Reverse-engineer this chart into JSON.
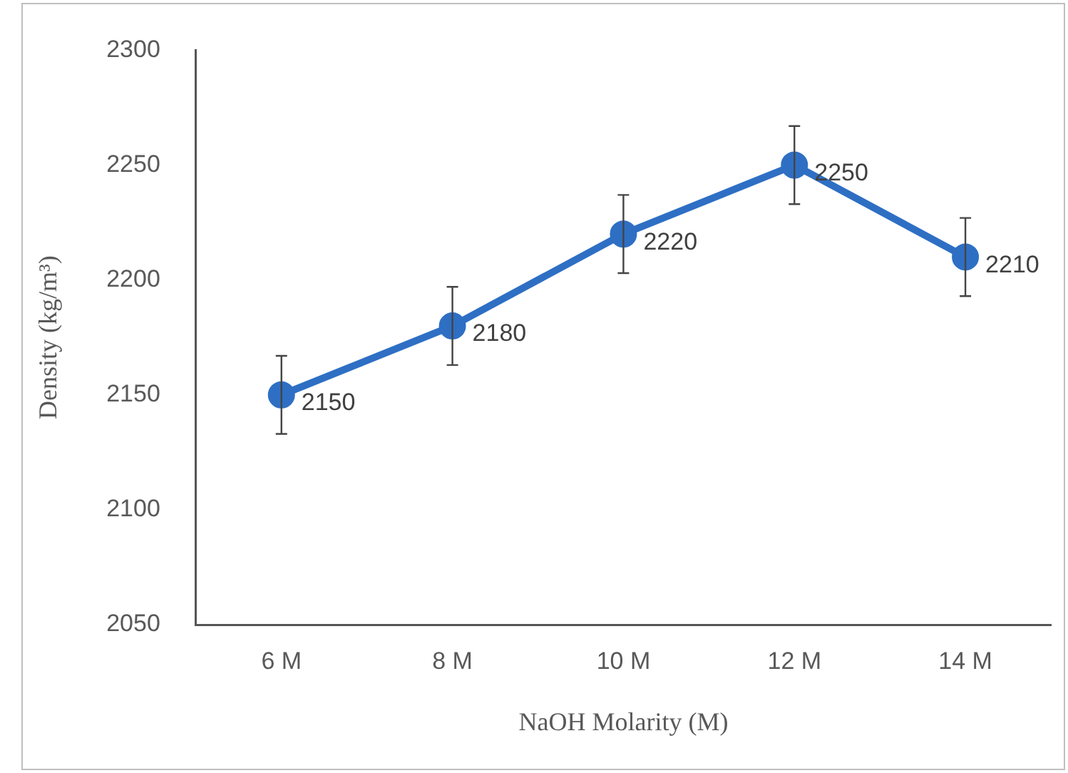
{
  "chart_data": {
    "type": "line",
    "xlabel": "NaOH Molarity (M)",
    "ylabel": "Density (kg/m³)",
    "categories": [
      "6 M",
      "8 M",
      "10 M",
      "12 M",
      "14 M"
    ],
    "series": [
      {
        "color": "#2e6fc4",
        "values": [
          2150,
          2180,
          2220,
          2250,
          2210
        ],
        "errors": [
          17,
          17,
          17,
          17,
          17
        ]
      }
    ],
    "ylim": [
      2050,
      2300
    ],
    "yticks": [
      2050,
      2100,
      2150,
      2200,
      2250,
      2300
    ],
    "grid": false,
    "legend": false,
    "marker": "circle",
    "line_style": "solid",
    "data_labels": true
  }
}
